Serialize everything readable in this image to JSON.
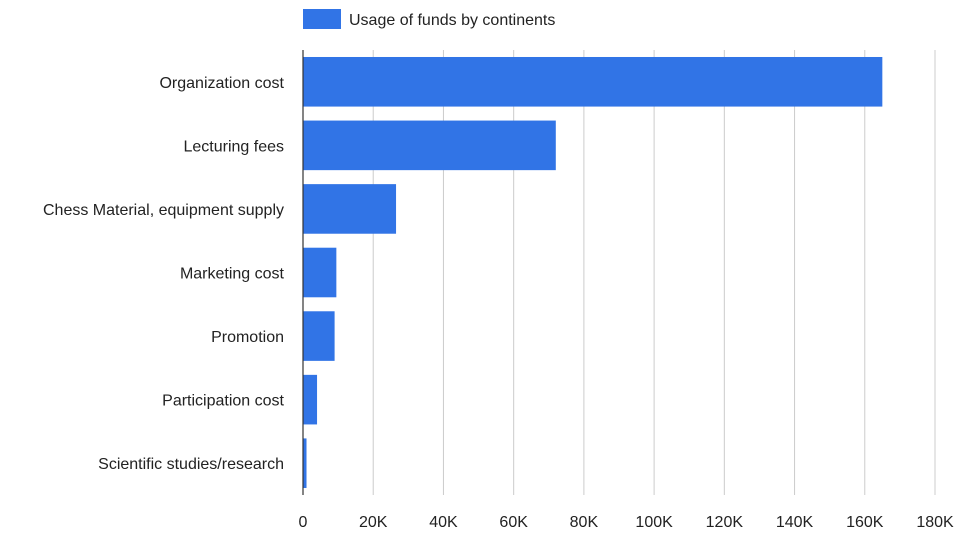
{
  "chart_data": {
    "type": "bar",
    "orientation": "horizontal",
    "categories": [
      "Organization cost",
      "Lecturing fees",
      "Chess Material, equipment supply",
      "Marketing cost",
      "Promotion",
      "Participation cost",
      "Scientific studies/research"
    ],
    "series": [
      {
        "name": "Usage of funds by continents",
        "values": [
          165000,
          72000,
          26500,
          9500,
          9000,
          4000,
          1000
        ]
      }
    ],
    "xlim": [
      0,
      180000
    ],
    "x_ticks": [
      0,
      20000,
      40000,
      60000,
      80000,
      100000,
      120000,
      140000,
      160000,
      180000
    ],
    "x_tick_labels": [
      "0",
      "20K",
      "40K",
      "60K",
      "80K",
      "100K",
      "120K",
      "140K",
      "160K",
      "180K"
    ],
    "grid": true,
    "legend_position": "top",
    "bar_color": "#3174e6",
    "title": "",
    "xlabel": "",
    "ylabel": ""
  }
}
